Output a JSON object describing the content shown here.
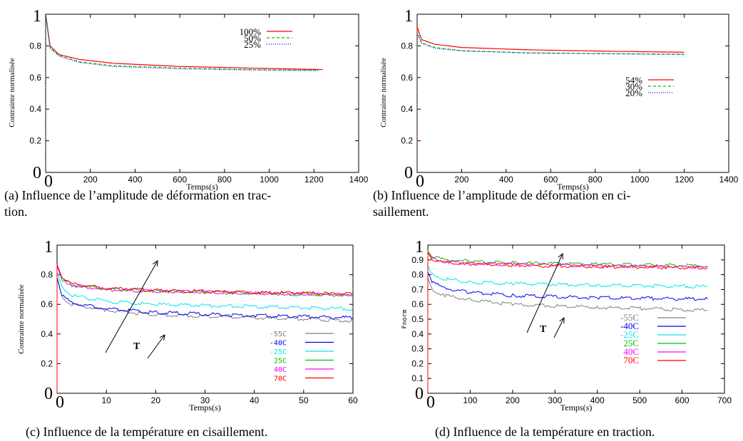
{
  "captions": {
    "a_line1": "(a) Influence de l’amplitude de déformation en trac-",
    "a_line2": "tion.",
    "b_line1": "(b) Influence de l’amplitude de déformation en ci-",
    "b_line2": "saillement.",
    "c": "(c) Influence de la température en cisaillement.",
    "d": "(d) Influence de la température en traction."
  },
  "chart_data": [
    {
      "id": "a",
      "type": "line",
      "ylabel": "Contrainte normalisée",
      "xlabel_main": "Temps(",
      "xlabel_unit": "s",
      "xlabel_end": ")",
      "xlim": [
        0,
        1400
      ],
      "ylim": [
        0,
        1
      ],
      "xticks": [
        0,
        200,
        400,
        600,
        800,
        1000,
        1200,
        1400
      ],
      "yticks": [
        0,
        0.2,
        0.4,
        0.6,
        0.8,
        1
      ],
      "xmax_data": 1240,
      "decay": {
        "plateau_final_x": 1240,
        "type": "relaxation"
      },
      "series": [
        {
          "name": "100%",
          "color": "#ff0000",
          "dash": "",
          "points": [
            [
              0,
              1
            ],
            [
              20,
              0.8
            ],
            [
              60,
              0.745
            ],
            [
              150,
              0.715
            ],
            [
              300,
              0.69
            ],
            [
              600,
              0.67
            ],
            [
              900,
              0.66
            ],
            [
              1240,
              0.65
            ]
          ]
        },
        {
          "name": "50%",
          "color": "#00c000",
          "dash": "4,3",
          "points": [
            [
              0,
              1
            ],
            [
              20,
              0.79
            ],
            [
              60,
              0.74
            ],
            [
              150,
              0.7
            ],
            [
              300,
              0.675
            ],
            [
              600,
              0.66
            ],
            [
              900,
              0.65
            ],
            [
              1220,
              0.645
            ]
          ]
        },
        {
          "name": "25%",
          "color": "#0000ff",
          "dash": "1,2",
          "points": [
            [
              0,
              1
            ],
            [
              20,
              0.785
            ],
            [
              60,
              0.735
            ],
            [
              150,
              0.695
            ],
            [
              300,
              0.67
            ],
            [
              600,
              0.655
            ],
            [
              900,
              0.648
            ],
            [
              1220,
              0.645
            ]
          ]
        }
      ]
    },
    {
      "id": "b",
      "type": "line",
      "ylabel": "Contrainte normalisée",
      "xlabel_main": "Temps(",
      "xlabel_unit": "s",
      "xlabel_end": ")",
      "xlim": [
        0,
        1400
      ],
      "ylim": [
        0,
        1
      ],
      "xticks": [
        0,
        200,
        400,
        600,
        800,
        1000,
        1200,
        1400
      ],
      "yticks": [
        0,
        0.2,
        0.4,
        0.6,
        0.8,
        1
      ],
      "series": [
        {
          "name": "54%",
          "color": "#ff0000",
          "dash": "",
          "points": [
            [
              0,
              0.92
            ],
            [
              20,
              0.84
            ],
            [
              80,
              0.81
            ],
            [
              200,
              0.79
            ],
            [
              500,
              0.775
            ],
            [
              900,
              0.765
            ],
            [
              1200,
              0.76
            ]
          ]
        },
        {
          "name": "30%",
          "color": "#00c000",
          "dash": "4,3",
          "points": [
            [
              0,
              0.89
            ],
            [
              20,
              0.82
            ],
            [
              80,
              0.79
            ],
            [
              200,
              0.77
            ],
            [
              500,
              0.755
            ],
            [
              900,
              0.75
            ],
            [
              1200,
              0.745
            ]
          ]
        },
        {
          "name": "20%",
          "color": "#0000ff",
          "dash": "1,2",
          "points": [
            [
              0,
              0.88
            ],
            [
              20,
              0.815
            ],
            [
              80,
              0.785
            ],
            [
              200,
              0.768
            ],
            [
              500,
              0.756
            ],
            [
              900,
              0.75
            ],
            [
              1200,
              0.748
            ]
          ]
        }
      ]
    },
    {
      "id": "c",
      "type": "line",
      "ylabel": "Contrainte normalisée",
      "xlabel_main": "Temps(",
      "xlabel_unit": "s",
      "xlabel_end": ")",
      "xlim": [
        0,
        60
      ],
      "ylim": [
        0,
        1
      ],
      "xticks": [
        0,
        10,
        20,
        30,
        40,
        50,
        60
      ],
      "yticks": [
        0,
        0.2,
        0.4,
        0.6,
        0.8,
        1
      ],
      "annotation": "T",
      "series": [
        {
          "name": "-55C",
          "color": "#808080",
          "dash": "",
          "points": [
            [
              0,
              0.78
            ],
            [
              1,
              0.65
            ],
            [
              3,
              0.6
            ],
            [
              10,
              0.56
            ],
            [
              20,
              0.53
            ],
            [
              40,
              0.51
            ],
            [
              60,
              0.49
            ]
          ]
        },
        {
          "name": "-40C",
          "color": "#0000ff",
          "dash": "",
          "points": [
            [
              0,
              0.78
            ],
            [
              1,
              0.66
            ],
            [
              3,
              0.61
            ],
            [
              10,
              0.57
            ],
            [
              20,
              0.545
            ],
            [
              40,
              0.525
            ],
            [
              60,
              0.51
            ]
          ]
        },
        {
          "name": "-25C",
          "color": "#00e5ee",
          "dash": "",
          "points": [
            [
              0,
              0.82
            ],
            [
              1,
              0.71
            ],
            [
              3,
              0.66
            ],
            [
              10,
              0.62
            ],
            [
              20,
              0.6
            ],
            [
              40,
              0.585
            ],
            [
              60,
              0.57
            ]
          ]
        },
        {
          "name": "25C",
          "color": "#00c000",
          "dash": "",
          "points": [
            [
              0,
              0.86
            ],
            [
              1,
              0.77
            ],
            [
              3,
              0.73
            ],
            [
              10,
              0.705
            ],
            [
              20,
              0.69
            ],
            [
              40,
              0.675
            ],
            [
              60,
              0.66
            ]
          ]
        },
        {
          "name": "40C",
          "color": "#ff00ff",
          "dash": "",
          "points": [
            [
              0,
              0.86
            ],
            [
              1,
              0.77
            ],
            [
              3,
              0.73
            ],
            [
              10,
              0.7
            ],
            [
              20,
              0.69
            ],
            [
              40,
              0.675
            ],
            [
              60,
              0.665
            ]
          ]
        },
        {
          "name": "70C",
          "color": "#ff0000",
          "dash": "",
          "points": [
            [
              0,
              0.87
            ],
            [
              1,
              0.78
            ],
            [
              3,
              0.74
            ],
            [
              10,
              0.71
            ],
            [
              20,
              0.695
            ],
            [
              40,
              0.68
            ],
            [
              60,
              0.67
            ]
          ]
        }
      ]
    },
    {
      "id": "d",
      "type": "line",
      "ylabel": "Fnorm",
      "xlabel_main": "Temps(",
      "xlabel_unit": "s",
      "xlabel_end": ")",
      "xlim": [
        0,
        700
      ],
      "ylim": [
        0,
        1
      ],
      "xticks": [
        0,
        100,
        200,
        300,
        400,
        500,
        600,
        700
      ],
      "yticks": [
        0,
        0.1,
        0.2,
        0.3,
        0.4,
        0.5,
        0.6,
        0.7,
        0.8,
        0.9,
        1
      ],
      "annotation": "T",
      "series": [
        {
          "name": "-55C",
          "color": "#808080",
          "dash": "",
          "points": [
            [
              0,
              0.78
            ],
            [
              10,
              0.7
            ],
            [
              40,
              0.66
            ],
            [
              100,
              0.63
            ],
            [
              200,
              0.6
            ],
            [
              400,
              0.58
            ],
            [
              660,
              0.56
            ]
          ]
        },
        {
          "name": "-40C",
          "color": "#0000ff",
          "dash": "",
          "points": [
            [
              0,
              0.82
            ],
            [
              10,
              0.75
            ],
            [
              40,
              0.71
            ],
            [
              100,
              0.68
            ],
            [
              200,
              0.66
            ],
            [
              400,
              0.645
            ],
            [
              660,
              0.635
            ]
          ]
        },
        {
          "name": "-25C",
          "color": "#00e5ee",
          "dash": "",
          "points": [
            [
              0,
              0.86
            ],
            [
              10,
              0.8
            ],
            [
              40,
              0.77
            ],
            [
              100,
              0.75
            ],
            [
              200,
              0.74
            ],
            [
              400,
              0.73
            ],
            [
              660,
              0.72
            ]
          ]
        },
        {
          "name": "25C",
          "color": "#00c000",
          "dash": "",
          "points": [
            [
              0,
              0.96
            ],
            [
              10,
              0.92
            ],
            [
              40,
              0.9
            ],
            [
              100,
              0.89
            ],
            [
              200,
              0.88
            ],
            [
              400,
              0.87
            ],
            [
              660,
              0.86
            ]
          ]
        },
        {
          "name": "40C",
          "color": "#ff00ff",
          "dash": "",
          "points": [
            [
              0,
              0.95
            ],
            [
              10,
              0.91
            ],
            [
              40,
              0.89
            ],
            [
              100,
              0.875
            ],
            [
              200,
              0.87
            ],
            [
              400,
              0.86
            ],
            [
              660,
              0.85
            ]
          ]
        },
        {
          "name": "70C",
          "color": "#ff0000",
          "dash": "",
          "points": [
            [
              0,
              0.95
            ],
            [
              10,
              0.9
            ],
            [
              40,
              0.885
            ],
            [
              100,
              0.875
            ],
            [
              200,
              0.865
            ],
            [
              400,
              0.855
            ],
            [
              660,
              0.845
            ]
          ]
        }
      ]
    }
  ]
}
